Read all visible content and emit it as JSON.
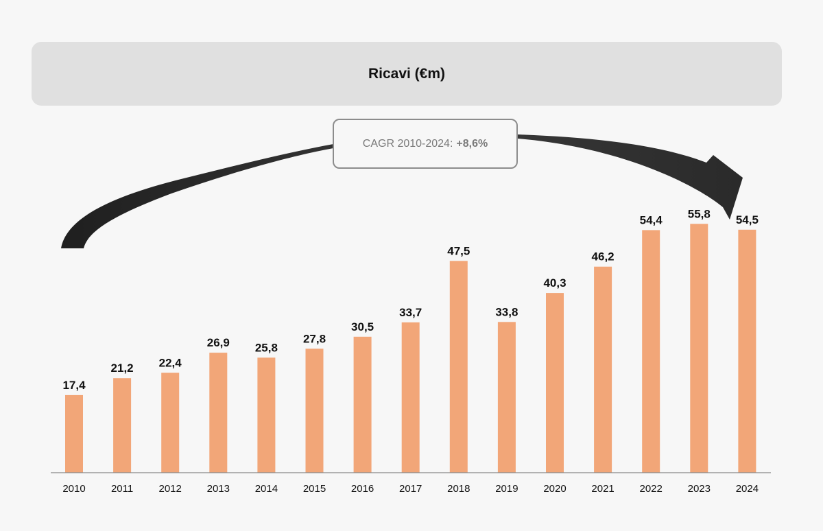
{
  "title": "Ricavi (€m)",
  "cagr": {
    "label": "CAGR 2010-2024:",
    "value": "+8,6%"
  },
  "colors": {
    "bar": "#f2a678",
    "banner": "#e0e0e0",
    "arrow": "#2b2b2b",
    "axis": "#888888"
  },
  "chart_data": {
    "type": "bar",
    "title": "Ricavi (€m)",
    "xlabel": "",
    "ylabel": "",
    "ylim": [
      0,
      60
    ],
    "grid": false,
    "categories": [
      "2010",
      "2011",
      "2012",
      "2013",
      "2014",
      "2015",
      "2016",
      "2017",
      "2018",
      "2019",
      "2020",
      "2021",
      "2022",
      "2023",
      "2024"
    ],
    "values": [
      17.4,
      21.2,
      22.4,
      26.9,
      25.8,
      27.8,
      30.5,
      33.7,
      47.5,
      33.8,
      40.3,
      46.2,
      54.4,
      55.8,
      54.5
    ],
    "value_labels": [
      "17,4",
      "21,2",
      "22,4",
      "26,9",
      "25,8",
      "27,8",
      "30,5",
      "33,7",
      "47,5",
      "33,8",
      "40,3",
      "46,2",
      "54,4",
      "55,8",
      "54,5"
    ]
  }
}
